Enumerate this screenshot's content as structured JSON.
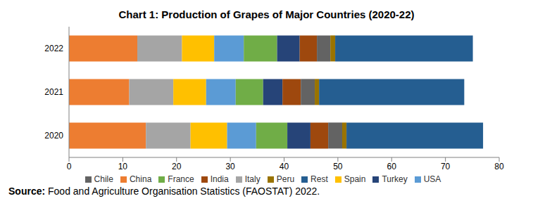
{
  "chart_data": {
    "type": "bar",
    "title": "Chart 1: Production of Grapes of Major Countries (2020-22)",
    "orientation": "horizontal",
    "stacked": true,
    "grid": false,
    "legend": "bottom",
    "categories": [
      "2022",
      "2021",
      "2020"
    ],
    "xlim": [
      0,
      80
    ],
    "xticks": [
      0,
      10,
      20,
      30,
      40,
      50,
      60,
      70,
      80
    ],
    "series": [
      {
        "name": "China",
        "color": "#ED7D31",
        "values": [
          12.7,
          11.2,
          14.3
        ]
      },
      {
        "name": "Italy",
        "color": "#A5A5A5",
        "values": [
          8.3,
          8.2,
          8.3
        ]
      },
      {
        "name": "Spain",
        "color": "#FFC000",
        "values": [
          6.0,
          6.1,
          6.8
        ]
      },
      {
        "name": "USA",
        "color": "#5B9BD5",
        "values": [
          5.5,
          5.5,
          5.4
        ]
      },
      {
        "name": "France",
        "color": "#70AD47",
        "values": [
          6.2,
          5.1,
          5.8
        ]
      },
      {
        "name": "Turkey",
        "color": "#264478",
        "values": [
          4.2,
          3.6,
          4.3
        ]
      },
      {
        "name": "India",
        "color": "#9E480E",
        "values": [
          3.2,
          3.4,
          3.3
        ]
      },
      {
        "name": "Chile",
        "color": "#636363",
        "values": [
          2.5,
          2.6,
          2.6
        ]
      },
      {
        "name": "Peru",
        "color": "#997300",
        "values": [
          0.9,
          0.8,
          0.8
        ]
      },
      {
        "name": "Rest",
        "color": "#255E91",
        "values": [
          25.6,
          27.0,
          25.4
        ]
      }
    ]
  },
  "source": {
    "label": "Source:",
    "text": "Food and Agriculture Organisation Statistics (FAOSTAT) 2022."
  }
}
